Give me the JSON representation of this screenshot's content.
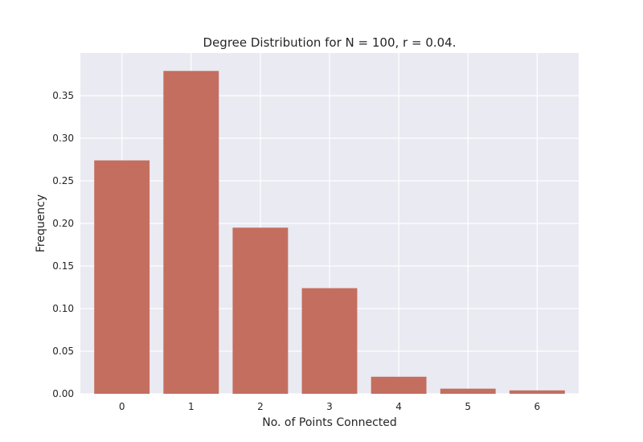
{
  "chart_data": {
    "type": "bar",
    "title": "Degree Distribution for N = 100, r = 0.04.",
    "xlabel": "No. of Points Connected",
    "ylabel": "Frequency",
    "categories": [
      "0",
      "1",
      "2",
      "3",
      "4",
      "5",
      "6"
    ],
    "values": [
      0.274,
      0.379,
      0.195,
      0.124,
      0.02,
      0.006,
      0.004
    ],
    "ylim": [
      0,
      0.4
    ],
    "yticks": [
      "0.00",
      "0.05",
      "0.10",
      "0.15",
      "0.20",
      "0.25",
      "0.30",
      "0.35"
    ],
    "grid": true,
    "colors": {
      "bar": "#c46e5f",
      "plot_background": "#eaeaf2",
      "grid": "#ffffff"
    }
  }
}
